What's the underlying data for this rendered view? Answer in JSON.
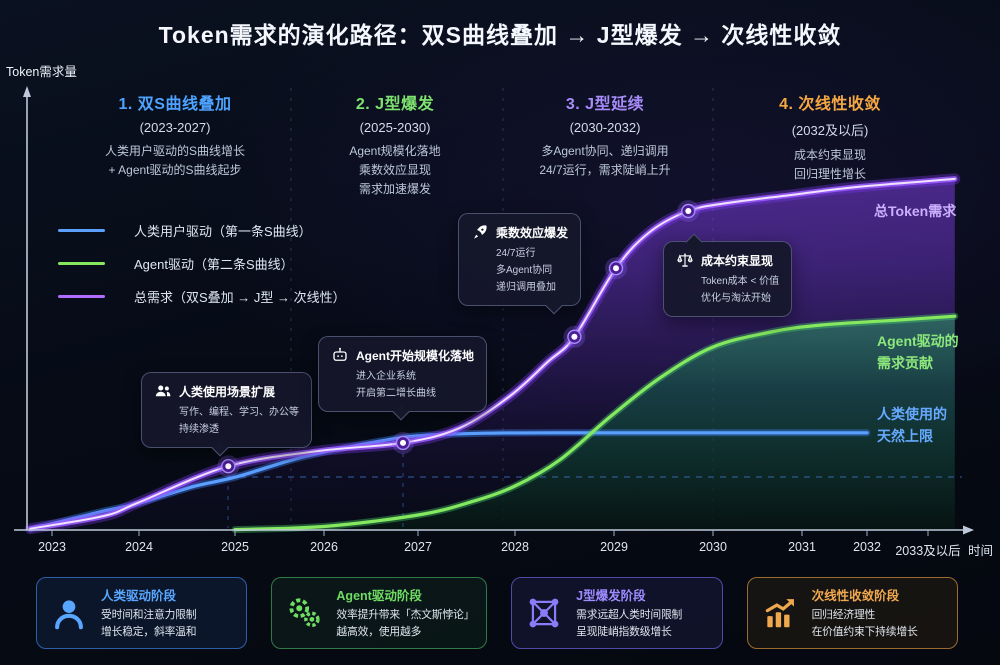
{
  "title": "Token需求的演化路径：双S曲线叠加 → J型爆发 → 次线性收敛",
  "y_axis_label": "Token需求量",
  "x_axis": {
    "labels": [
      "2023",
      "2024",
      "2025",
      "2026",
      "2027",
      "2028",
      "2029",
      "2030",
      "2031",
      "2032",
      "2033及以后"
    ],
    "axis_label": "时间"
  },
  "phases": [
    {
      "title": "1. 双S曲线叠加",
      "years": "(2023-2027)",
      "color": "#4da3ff",
      "desc": [
        "人类用户驱动的S曲线增长",
        "+ Agent驱动的S曲线起步"
      ]
    },
    {
      "title": "2. J型爆发",
      "years": "(2025-2030)",
      "color": "#7ee36e",
      "desc": [
        "Agent规模化落地",
        "乘数效应显现",
        "需求加速爆发"
      ]
    },
    {
      "title": "3. J型延续",
      "years": "(2030-2032)",
      "color": "#a78bfa",
      "desc": [
        "多Agent协同、递归调用",
        "24/7运行，需求陡峭上升"
      ]
    },
    {
      "title": "4. 次线性收敛",
      "years": "(2032及以后)",
      "color": "#f5a742",
      "desc": [
        "成本约束显现",
        "回归理性增长"
      ]
    }
  ],
  "legend": {
    "items": [
      {
        "label": "人类用户驱动（第一条S曲线）",
        "color": "#5ba0ff"
      },
      {
        "label": "Agent驱动（第二条S曲线）",
        "color": "#86e85f"
      },
      {
        "label": "总需求（双S叠加 → J型 → 次线性）",
        "color": "#b06cff"
      }
    ]
  },
  "callouts": [
    {
      "icon": "people-icon",
      "title": "人类使用场景扩展",
      "lines": [
        "写作、编程、学习、办公等",
        "持续渗透"
      ]
    },
    {
      "icon": "robot-icon",
      "title": "Agent开始规模化落地",
      "lines": [
        "进入企业系统",
        "开启第二增长曲线"
      ]
    },
    {
      "icon": "rocket-icon",
      "title": "乘数效应爆发",
      "lines": [
        "24/7运行",
        "多Agent协同",
        "递归调用叠加"
      ]
    },
    {
      "icon": "scales-icon",
      "title": "成本约束显现",
      "lines": [
        "Token成本 < 价值",
        "优化与淘汰开始"
      ]
    }
  ],
  "curve_labels": {
    "total": "总Token需求",
    "agent": [
      "Agent驱动的",
      "需求贡献"
    ],
    "human": [
      "人类使用的",
      "天然上限"
    ]
  },
  "cards": [
    {
      "icon": "person-icon",
      "color": "#58a6ff",
      "title": "人类驱动阶段",
      "lines": [
        "受时间和注意力限制",
        "增长稳定，斜率温和"
      ]
    },
    {
      "icon": "gears-icon",
      "color": "#6fdd63",
      "title": "Agent驱动阶段",
      "lines": [
        "效率提升带来「杰文斯悖论」",
        "越高效，使用越多"
      ]
    },
    {
      "icon": "network-icon",
      "color": "#9d8bff",
      "title": "J型爆发阶段",
      "lines": [
        "需求远超人类时间限制",
        "呈现陡峭指数级增长"
      ]
    },
    {
      "icon": "chart-up-icon",
      "color": "#f0a84f",
      "title": "次线性收敛阶段",
      "lines": [
        "回归经济理性",
        "在价值约束下持续增长"
      ]
    }
  ],
  "chart_data": {
    "type": "line",
    "title": "Token需求的演化路径：双S曲线叠加 → J型爆发 → 次线性收敛",
    "xlabel": "时间",
    "ylabel": "Token需求量",
    "x_ticks": [
      "2023",
      "2024",
      "2025",
      "2026",
      "2027",
      "2028",
      "2029",
      "2030",
      "2031",
      "2032",
      "2033及以后"
    ],
    "y_scale_note": "relative Token demand, estimated 0-100 (no numeric axis shown)",
    "grid": false,
    "legend_position": "upper-left",
    "series": [
      {
        "name": "人类用户驱动（第一条S曲线）",
        "color": "#5ba0ff",
        "shape": "S-curve reaching plateau ~2027",
        "points": [
          [
            2022.75,
            0.2
          ],
          [
            2023.55,
            4.1
          ],
          [
            2024,
            6.1
          ],
          [
            2024.55,
            9.8
          ],
          [
            2025,
            12.0
          ],
          [
            2025.6,
            15.7
          ],
          [
            2026,
            17.7
          ],
          [
            2026.6,
            20.2
          ],
          [
            2027,
            21.4
          ],
          [
            2027.7,
            22.0
          ],
          [
            2028.6,
            22.1
          ],
          [
            2030,
            22.1
          ],
          [
            2032,
            22.1
          ]
        ]
      },
      {
        "name": "Agent驱动（第二条S曲线）",
        "color": "#86e85f",
        "shape": "second S-curve starting ~2025, plateau ~2031",
        "points": [
          [
            2025,
            0.1
          ],
          [
            2026,
            0.8
          ],
          [
            2027,
            3.4
          ],
          [
            2027.55,
            6.4
          ],
          [
            2028,
            10.0
          ],
          [
            2028.45,
            15.9
          ],
          [
            2028.96,
            25.7
          ],
          [
            2029.46,
            34.5
          ],
          [
            2030,
            41.6
          ],
          [
            2030.65,
            45.0
          ],
          [
            2031.3,
            46.6
          ],
          [
            2032.5,
            47.7
          ],
          [
            2033.44,
            48.6
          ]
        ]
      },
      {
        "name": "总需求（双S叠加 → J型 → 次线性）",
        "color": "#b06cff",
        "shape": "double-S stack → J explosion 2027-2030 → sublinear convergence",
        "points": [
          [
            2022.75,
            0.3
          ],
          [
            2023.6,
            3.2
          ],
          [
            2024,
            6.3
          ],
          [
            2024.93,
            14.5
          ],
          [
            2025.96,
            18.0
          ],
          [
            2026.84,
            19.8
          ],
          [
            2027.43,
            23.2
          ],
          [
            2027.95,
            30.5
          ],
          [
            2028.33,
            38.2
          ],
          [
            2028.6,
            43.9
          ],
          [
            2029.02,
            59.5
          ],
          [
            2029.36,
            67.7
          ],
          [
            2029.75,
            72.5
          ],
          [
            2030.15,
            74.3
          ],
          [
            2030.9,
            76.2
          ],
          [
            2031.8,
            77.9
          ],
          [
            2033.44,
            79.8
          ]
        ]
      }
    ],
    "markers_on_total": [
      [
        2024.93,
        14.5
      ],
      [
        2026.84,
        19.8
      ],
      [
        2028.6,
        43.9
      ],
      [
        2029.02,
        59.5
      ],
      [
        2029.75,
        72.5
      ]
    ],
    "phase_divider_years": [
      2025.6,
      2027.9,
      2030.0
    ],
    "annotations": [
      "人类使用场景扩展 @2025",
      "Agent开始规模化落地 @2027",
      "乘数效应爆发 @2028-2029",
      "成本约束显现 @2030"
    ]
  }
}
